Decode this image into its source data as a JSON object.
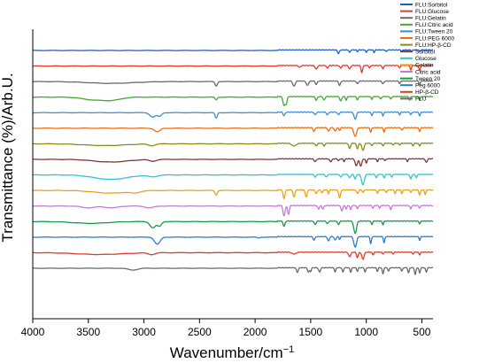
{
  "chart_data": {
    "type": "line",
    "xlabel": "Wavenumber/cm",
    "xlabel_sup": "−1",
    "ylabel": "Transmittance (%)/Arb.U.",
    "xlim": [
      4000,
      400
    ],
    "x_reversed": true,
    "x_ticks": [
      4000,
      3500,
      3000,
      2500,
      2000,
      1500,
      1000,
      500
    ],
    "y_ticks": "none",
    "grid": false,
    "legend_position": "top-right",
    "series": [
      {
        "name": "FLU:Sorbitol",
        "color": "#1f5fc4",
        "baseline_rank": 0,
        "bands": [
          [
            1250,
            4,
            8
          ],
          [
            1150,
            3,
            6
          ],
          [
            1080,
            2,
            5
          ],
          [
            1000,
            3,
            5
          ],
          [
            930,
            3,
            5
          ],
          [
            820,
            2,
            6
          ],
          [
            680,
            1.5,
            6
          ],
          [
            590,
            2,
            5
          ],
          [
            520,
            2,
            5
          ]
        ]
      },
      {
        "name": "FLU:Glucose",
        "color": "#e03a2a",
        "baseline_rank": 1,
        "bands": [
          [
            1600,
            2,
            10
          ],
          [
            1450,
            4,
            10
          ],
          [
            1350,
            3,
            8
          ],
          [
            1230,
            3,
            8
          ],
          [
            1150,
            4,
            8
          ],
          [
            1040,
            8,
            7
          ],
          [
            970,
            3,
            6
          ],
          [
            850,
            4,
            6
          ],
          [
            700,
            3,
            6
          ],
          [
            600,
            5,
            6
          ],
          [
            520,
            6,
            6
          ]
        ]
      },
      {
        "name": "FLU:Gelatin",
        "color": "#6a6a6a",
        "baseline_rank": 2,
        "bands": [
          [
            3300,
            2,
            200
          ],
          [
            2350,
            5,
            10
          ],
          [
            1650,
            6,
            10
          ],
          [
            1530,
            5,
            10
          ],
          [
            1450,
            4,
            8
          ],
          [
            1240,
            5,
            8
          ],
          [
            1080,
            3,
            8
          ],
          [
            850,
            3,
            8
          ],
          [
            700,
            3,
            6
          ],
          [
            520,
            4,
            6
          ]
        ]
      },
      {
        "name": "FLU:Citric acid",
        "color": "#3faa2c",
        "baseline_rank": 3,
        "bands": [
          [
            3450,
            3,
            100
          ],
          [
            3280,
            3,
            80
          ],
          [
            2350,
            3,
            10
          ],
          [
            1740,
            10,
            9
          ],
          [
            1720,
            8,
            8
          ],
          [
            1450,
            4,
            8
          ],
          [
            1380,
            4,
            8
          ],
          [
            1230,
            5,
            8
          ],
          [
            1180,
            4,
            6
          ],
          [
            1080,
            4,
            6
          ],
          [
            950,
            3,
            6
          ],
          [
            870,
            3,
            6
          ],
          [
            780,
            3,
            6
          ],
          [
            610,
            4,
            6
          ],
          [
            520,
            4,
            6
          ]
        ]
      },
      {
        "name": "FLU:Tween 20",
        "color": "#3a90d0",
        "baseline_rank": 4,
        "bands": [
          [
            2920,
            5,
            25
          ],
          [
            2860,
            4,
            18
          ],
          [
            2350,
            6,
            10
          ],
          [
            1740,
            4,
            8
          ],
          [
            1460,
            3,
            8
          ],
          [
            1350,
            3,
            8
          ],
          [
            1250,
            3,
            8
          ],
          [
            1100,
            8,
            10
          ],
          [
            950,
            4,
            6
          ],
          [
            850,
            4,
            6
          ],
          [
            700,
            3,
            6
          ],
          [
            600,
            3,
            6
          ],
          [
            520,
            4,
            6
          ]
        ]
      },
      {
        "name": "FLU:PEG 6000",
        "color": "#ee6e10",
        "baseline_rank": 5,
        "bands": [
          [
            2880,
            4,
            25
          ],
          [
            1470,
            4,
            8
          ],
          [
            1340,
            4,
            8
          ],
          [
            1280,
            4,
            8
          ],
          [
            1240,
            3,
            6
          ],
          [
            1100,
            10,
            12
          ],
          [
            960,
            5,
            6
          ],
          [
            840,
            5,
            6
          ],
          [
            680,
            3,
            6
          ],
          [
            520,
            4,
            6
          ]
        ]
      },
      {
        "name": "FLU:HP-β-CD",
        "color": "#8c8c18",
        "baseline_rank": 6,
        "bands": [
          [
            3350,
            2,
            180
          ],
          [
            2930,
            2,
            30
          ],
          [
            1650,
            3,
            20
          ],
          [
            1450,
            3,
            8
          ],
          [
            1380,
            3,
            8
          ],
          [
            1150,
            6,
            8
          ],
          [
            1080,
            6,
            8
          ],
          [
            1030,
            8,
            10
          ],
          [
            950,
            3,
            6
          ],
          [
            850,
            3,
            6
          ],
          [
            760,
            2,
            6
          ],
          [
            700,
            2,
            6
          ],
          [
            580,
            3,
            6
          ],
          [
            520,
            3,
            6
          ]
        ]
      },
      {
        "name": "Sorbitol",
        "color": "#7b3a32",
        "baseline_rank": 7,
        "bands": [
          [
            3300,
            3,
            150
          ],
          [
            2920,
            2,
            30
          ],
          [
            1460,
            3,
            10
          ],
          [
            1320,
            3,
            10
          ],
          [
            1250,
            2,
            8
          ],
          [
            1200,
            3,
            6
          ],
          [
            1090,
            8,
            10
          ],
          [
            1050,
            8,
            10
          ],
          [
            1000,
            5,
            6
          ],
          [
            900,
            3,
            6
          ],
          [
            830,
            2,
            6
          ],
          [
            630,
            3,
            6
          ],
          [
            460,
            4,
            8
          ]
        ]
      },
      {
        "name": "Glucose",
        "color": "#2fc6d0",
        "baseline_rank": 8,
        "bands": [
          [
            3300,
            5,
            150
          ],
          [
            2920,
            2,
            40
          ],
          [
            1460,
            3,
            8
          ],
          [
            1360,
            3,
            8
          ],
          [
            1230,
            3,
            8
          ],
          [
            1150,
            4,
            8
          ],
          [
            1100,
            5,
            8
          ],
          [
            1030,
            12,
            12
          ],
          [
            910,
            4,
            6
          ],
          [
            840,
            4,
            6
          ],
          [
            770,
            3,
            6
          ],
          [
            600,
            5,
            8
          ],
          [
            550,
            4,
            6
          ]
        ]
      },
      {
        "name": "Gelatin",
        "color": "#e8a31a",
        "baseline_rank": 9,
        "bands": [
          [
            3300,
            3,
            150
          ],
          [
            3080,
            2,
            40
          ],
          [
            2350,
            5,
            10
          ],
          [
            1740,
            10,
            8
          ],
          [
            1650,
            8,
            8
          ],
          [
            1540,
            8,
            8
          ],
          [
            1450,
            4,
            8
          ],
          [
            1400,
            3,
            8
          ],
          [
            1340,
            4,
            6
          ],
          [
            1240,
            9,
            8
          ],
          [
            1080,
            4,
            8
          ],
          [
            1030,
            3,
            6
          ],
          [
            900,
            4,
            6
          ],
          [
            820,
            3,
            6
          ],
          [
            740,
            4,
            6
          ],
          [
            680,
            4,
            6
          ],
          [
            600,
            3,
            6
          ],
          [
            520,
            6,
            6
          ],
          [
            470,
            5,
            6
          ]
        ]
      },
      {
        "name": "Citric acid",
        "color": "#c57ad6",
        "baseline_rank": 10,
        "bands": [
          [
            3500,
            2,
            60
          ],
          [
            3290,
            2,
            60
          ],
          [
            2950,
            2,
            40
          ],
          [
            1740,
            12,
            9
          ],
          [
            1700,
            10,
            8
          ],
          [
            1430,
            4,
            8
          ],
          [
            1390,
            4,
            8
          ],
          [
            1220,
            6,
            8
          ],
          [
            1180,
            4,
            6
          ],
          [
            1140,
            5,
            6
          ],
          [
            1080,
            4,
            6
          ],
          [
            940,
            3,
            6
          ],
          [
            880,
            3,
            6
          ],
          [
            780,
            5,
            6
          ],
          [
            600,
            4,
            6
          ],
          [
            520,
            3,
            6
          ]
        ]
      },
      {
        "name": "Tween 20",
        "color": "#159a4a",
        "baseline_rank": 11,
        "bands": [
          [
            3480,
            2,
            150
          ],
          [
            2920,
            7,
            25
          ],
          [
            2860,
            5,
            18
          ],
          [
            1740,
            6,
            8
          ],
          [
            1460,
            4,
            8
          ],
          [
            1350,
            3,
            8
          ],
          [
            1250,
            4,
            8
          ],
          [
            1100,
            14,
            12
          ],
          [
            950,
            4,
            6
          ],
          [
            850,
            4,
            6
          ],
          [
            520,
            3,
            6
          ]
        ]
      },
      {
        "name": "Peg 6000",
        "color": "#2a7ad0",
        "baseline_rank": 12,
        "bands": [
          [
            2880,
            8,
            25
          ],
          [
            1970,
            1,
            10
          ],
          [
            1470,
            4,
            8
          ],
          [
            1340,
            5,
            8
          ],
          [
            1280,
            4,
            8
          ],
          [
            1240,
            3,
            6
          ],
          [
            1100,
            12,
            12
          ],
          [
            960,
            8,
            6
          ],
          [
            840,
            7,
            6
          ],
          [
            520,
            4,
            6
          ]
        ]
      },
      {
        "name": "HP-β-CD",
        "color": "#e03a2a",
        "baseline_rank": 13,
        "bands": [
          [
            3400,
            2,
            200
          ],
          [
            2930,
            2,
            30
          ],
          [
            1650,
            2,
            20
          ],
          [
            1150,
            5,
            10
          ],
          [
            1080,
            6,
            8
          ],
          [
            1030,
            8,
            10
          ],
          [
            940,
            3,
            6
          ],
          [
            850,
            2,
            6
          ],
          [
            760,
            2,
            6
          ],
          [
            580,
            2,
            6
          ],
          [
            520,
            3,
            6
          ]
        ]
      },
      {
        "name": "FLU",
        "color": "#6a6a6a",
        "baseline_rank": 14,
        "bands": [
          [
            3100,
            2,
            40
          ],
          [
            1620,
            5,
            8
          ],
          [
            1520,
            5,
            8
          ],
          [
            1500,
            4,
            6
          ],
          [
            1420,
            5,
            8
          ],
          [
            1280,
            5,
            6
          ],
          [
            1210,
            5,
            6
          ],
          [
            1140,
            5,
            6
          ],
          [
            1080,
            4,
            6
          ],
          [
            1010,
            5,
            6
          ],
          [
            900,
            4,
            6
          ],
          [
            850,
            7,
            6
          ],
          [
            800,
            4,
            6
          ],
          [
            680,
            4,
            6
          ],
          [
            620,
            6,
            6
          ],
          [
            560,
            8,
            6
          ],
          [
            520,
            6,
            6
          ],
          [
            460,
            5,
            6
          ]
        ]
      }
    ]
  }
}
